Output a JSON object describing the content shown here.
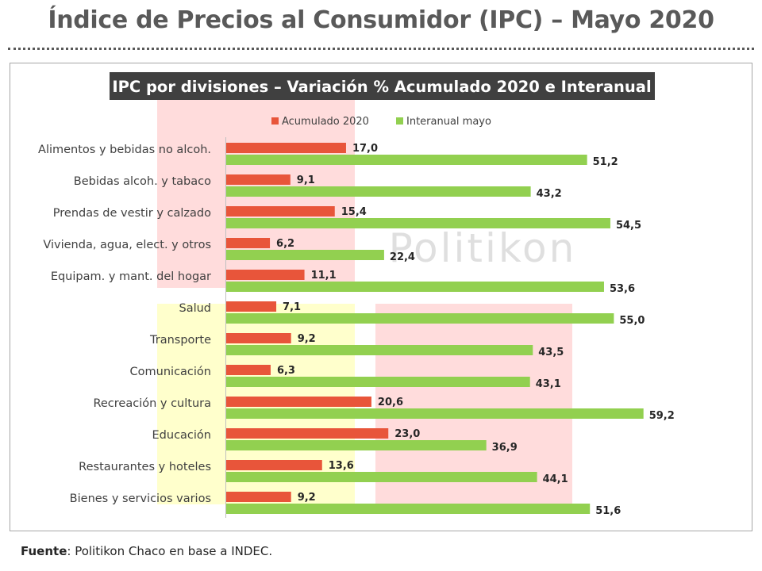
{
  "page": {
    "title": "Índice de Precios al Consumidor (IPC) – Mayo 2020",
    "footer_label": "Fuente",
    "footer_text": ": Politikon Chaco en base a INDEC.",
    "watermark": "Politikon"
  },
  "colors": {
    "acumulado": "#e8553a",
    "interanual": "#92d050",
    "title_box": "#404040",
    "band_pink": "#ffdcdc",
    "band_yellow": "#ffffcc"
  },
  "chart_data": {
    "type": "bar",
    "orientation": "horizontal",
    "title": "IPC por divisiones – Variación % Acumulado 2020 e Interanual",
    "legend_position": "top",
    "grid": false,
    "xlim": [
      0,
      62
    ],
    "categories": [
      "Alimentos y bebidas no alcoh.",
      "Bebidas alcoh. y tabaco",
      "Prendas de vestir y calzado",
      "Vivienda, agua, elect. y otros",
      "Equipam. y mant. del hogar",
      "Salud",
      "Transporte",
      "Comunicación",
      "Recreación y cultura",
      "Educación",
      "Restaurantes y hoteles",
      "Bienes y servicios varios"
    ],
    "series": [
      {
        "name": "Acumulado 2020",
        "values": [
          17.0,
          9.1,
          15.4,
          6.2,
          11.1,
          7.1,
          9.2,
          6.3,
          20.6,
          23.0,
          13.6,
          9.2
        ],
        "labels": [
          "17,0",
          "9,1",
          "15,4",
          "6,2",
          "11,1",
          "7,1",
          "9,2",
          "6,3",
          "20,6",
          "23,0",
          "13,6",
          "9,2"
        ]
      },
      {
        "name": "Interanual mayo",
        "values": [
          51.2,
          43.2,
          54.5,
          22.4,
          53.6,
          55.0,
          43.5,
          43.1,
          59.2,
          36.9,
          44.1,
          51.6
        ],
        "labels": [
          "51,2",
          "43,2",
          "54,5",
          "22,4",
          "53,6",
          "55,0",
          "43,5",
          "43,1",
          "59,2",
          "36,9",
          "44,1",
          "51,6"
        ]
      }
    ]
  }
}
